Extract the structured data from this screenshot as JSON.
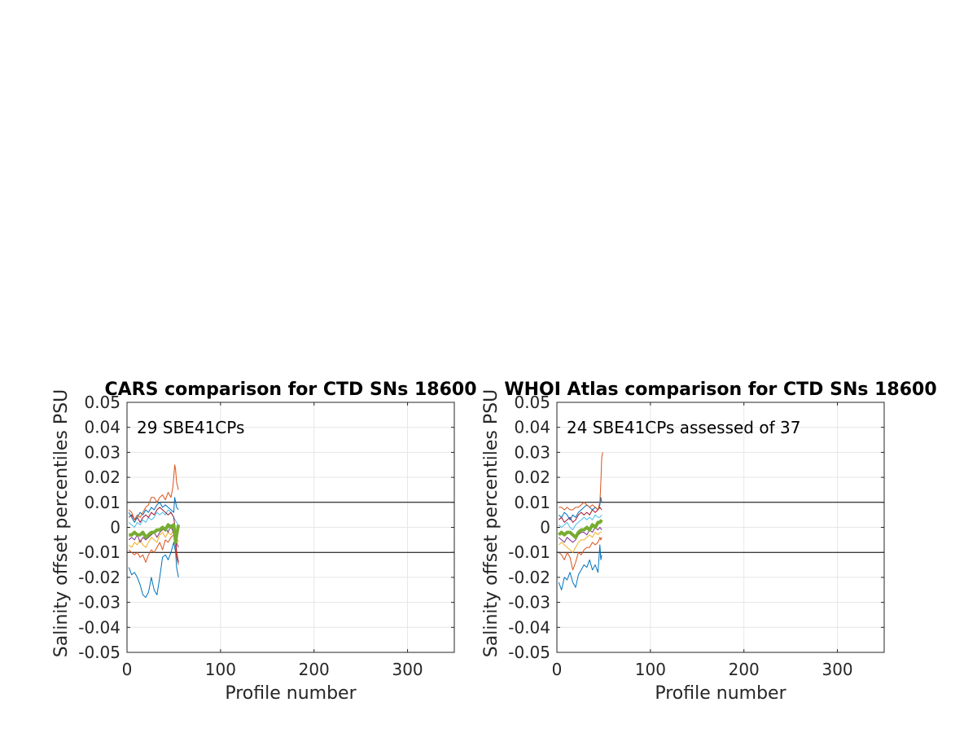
{
  "colors": {
    "axis": "#262626",
    "grid": "#e6e6e6",
    "refline": "#000000",
    "median": "#77ac30",
    "series_palette": [
      "#0072bd",
      "#d95319",
      "#edb120",
      "#7e2f8e",
      "#4dbeee",
      "#a2142f"
    ]
  },
  "chart_data": [
    {
      "type": "line",
      "title": "CARS comparison for CTD SNs 18600",
      "annotation": "29 SBE41CPs",
      "xlabel": "Profile number",
      "ylabel": "Salinity offset percentiles PSU",
      "xlim": [
        0,
        350
      ],
      "ylim": [
        -0.05,
        0.05
      ],
      "xticks": [
        0,
        100,
        200,
        300
      ],
      "xtick_labels": [
        "0",
        "100",
        "200",
        "300"
      ],
      "yticks": [
        -0.05,
        -0.04,
        -0.03,
        -0.02,
        -0.01,
        0,
        0.01,
        0.02,
        0.03,
        0.04,
        0.05
      ],
      "ytick_labels": [
        "-0.05",
        "-0.04",
        "-0.03",
        "-0.02",
        "-0.01",
        "0",
        "0.01",
        "0.02",
        "0.03",
        "0.04",
        "0.05"
      ],
      "grid": true,
      "reference_lines": [
        0.01,
        -0.01
      ],
      "series": [
        {
          "color": "#0072bd",
          "width": 1,
          "x": [
            2,
            5,
            8,
            11,
            14,
            17,
            20,
            23,
            26,
            29,
            32,
            35,
            38,
            41,
            44,
            47,
            50,
            52,
            53,
            55
          ],
          "y": [
            -0.016,
            -0.019,
            -0.018,
            -0.02,
            -0.023,
            -0.027,
            -0.028,
            -0.026,
            -0.02,
            -0.025,
            -0.027,
            -0.02,
            -0.012,
            -0.011,
            -0.013,
            -0.01,
            -0.006,
            -0.01,
            -0.016,
            -0.02
          ]
        },
        {
          "color": "#d95319",
          "width": 1,
          "x": [
            2,
            5,
            8,
            11,
            14,
            17,
            20,
            23,
            26,
            29,
            32,
            35,
            38,
            41,
            44,
            47,
            50,
            51,
            52,
            53,
            55
          ],
          "y": [
            -0.009,
            -0.01,
            -0.011,
            -0.01,
            -0.012,
            -0.011,
            -0.014,
            -0.011,
            -0.009,
            -0.01,
            -0.008,
            -0.006,
            -0.009,
            -0.005,
            -0.006,
            -0.004,
            -0.003,
            -0.005,
            -0.008,
            -0.012,
            -0.015
          ]
        },
        {
          "color": "#edb120",
          "width": 1,
          "x": [
            2,
            5,
            8,
            11,
            14,
            17,
            20,
            23,
            26,
            29,
            32,
            35,
            38,
            41,
            44,
            47,
            50,
            53,
            55
          ],
          "y": [
            -0.007,
            -0.008,
            -0.006,
            -0.007,
            -0.005,
            -0.007,
            -0.008,
            -0.006,
            -0.004,
            -0.005,
            -0.006,
            -0.003,
            -0.002,
            -0.004,
            -0.002,
            -0.003,
            -0.001,
            -0.004,
            -0.006
          ]
        },
        {
          "color": "#7e2f8e",
          "width": 1,
          "x": [
            2,
            5,
            8,
            11,
            14,
            17,
            20,
            23,
            26,
            29,
            32,
            35,
            38,
            41,
            44,
            47,
            50,
            53,
            55
          ],
          "y": [
            -0.005,
            -0.004,
            -0.005,
            -0.003,
            -0.006,
            -0.004,
            -0.005,
            -0.004,
            -0.003,
            -0.002,
            -0.004,
            -0.002,
            -0.001,
            0.0,
            -0.002,
            0.001,
            -0.003,
            -0.006,
            -0.008
          ]
        },
        {
          "color": "#4dbeee",
          "width": 1,
          "x": [
            2,
            5,
            8,
            11,
            14,
            17,
            20,
            23,
            26,
            29,
            32,
            35,
            38,
            41,
            44,
            47,
            50,
            53,
            55
          ],
          "y": [
            0.002,
            0.001,
            0.0,
            0.002,
            0.001,
            0.003,
            0.002,
            0.004,
            0.003,
            0.004,
            0.006,
            0.005,
            0.006,
            0.005,
            0.007,
            0.006,
            0.004,
            0.002,
            0.001
          ]
        },
        {
          "color": "#a2142f",
          "width": 1,
          "x": [
            2,
            5,
            8,
            11,
            14,
            17,
            20,
            23,
            26,
            29,
            32,
            35,
            38,
            41,
            44,
            47,
            50,
            52,
            53,
            55
          ],
          "y": [
            0.004,
            0.005,
            0.003,
            0.004,
            0.002,
            0.004,
            0.005,
            0.004,
            0.006,
            0.005,
            0.007,
            0.008,
            0.007,
            0.006,
            0.005,
            0.006,
            0.004,
            -0.002,
            -0.01,
            -0.014
          ]
        },
        {
          "color": "#0072bd",
          "width": 1,
          "x": [
            2,
            5,
            8,
            11,
            14,
            17,
            20,
            23,
            26,
            29,
            32,
            35,
            38,
            41,
            44,
            47,
            50,
            51,
            53,
            55
          ],
          "y": [
            0.006,
            0.004,
            0.002,
            0.004,
            0.006,
            0.005,
            0.007,
            0.006,
            0.008,
            0.007,
            0.009,
            0.01,
            0.008,
            0.009,
            0.008,
            0.007,
            0.006,
            0.012,
            0.008,
            0.007
          ]
        },
        {
          "color": "#d95319",
          "width": 1,
          "x": [
            2,
            5,
            8,
            11,
            14,
            17,
            20,
            23,
            26,
            29,
            32,
            35,
            38,
            41,
            44,
            47,
            49,
            50,
            51,
            52,
            53,
            55
          ],
          "y": [
            0.007,
            0.006,
            0.003,
            0.005,
            0.004,
            0.006,
            0.008,
            0.009,
            0.012,
            0.012,
            0.01,
            0.012,
            0.013,
            0.011,
            0.014,
            0.012,
            0.016,
            0.02,
            0.025,
            0.023,
            0.018,
            0.015
          ]
        },
        {
          "color": "#77ac30",
          "width": 4,
          "x": [
            2,
            5,
            8,
            11,
            14,
            17,
            20,
            23,
            26,
            29,
            32,
            35,
            38,
            41,
            44,
            47,
            50,
            52,
            53,
            55
          ],
          "y": [
            -0.003,
            -0.003,
            -0.002,
            -0.003,
            -0.003,
            -0.002,
            -0.004,
            -0.003,
            -0.002,
            -0.002,
            -0.001,
            -0.001,
            0.0,
            -0.001,
            0.001,
            0.0,
            0.001,
            -0.006,
            -0.003,
            0.001
          ]
        }
      ]
    },
    {
      "type": "line",
      "title": "WHOI Atlas comparison for CTD SNs 18600",
      "annotation": "24 SBE41CPs assessed of 37",
      "xlabel": "Profile number",
      "ylabel": "Salinity offset percentiles PSU",
      "xlim": [
        0,
        350
      ],
      "ylim": [
        -0.05,
        0.05
      ],
      "xticks": [
        0,
        100,
        200,
        300
      ],
      "xtick_labels": [
        "0",
        "100",
        "200",
        "300"
      ],
      "yticks": [
        -0.05,
        -0.04,
        -0.03,
        -0.02,
        -0.01,
        0,
        0.01,
        0.02,
        0.03,
        0.04,
        0.05
      ],
      "ytick_labels": [
        "-0.05",
        "-0.04",
        "-0.03",
        "-0.02",
        "-0.01",
        "0",
        "0.01",
        "0.02",
        "0.03",
        "0.04",
        "0.05"
      ],
      "grid": true,
      "reference_lines": [
        0.01,
        -0.01
      ],
      "series": [
        {
          "color": "#0072bd",
          "width": 1,
          "x": [
            2,
            5,
            8,
            11,
            14,
            17,
            20,
            23,
            26,
            29,
            32,
            35,
            38,
            41,
            44,
            46,
            47,
            48
          ],
          "y": [
            -0.022,
            -0.025,
            -0.02,
            -0.021,
            -0.018,
            -0.022,
            -0.024,
            -0.019,
            -0.017,
            -0.015,
            -0.016,
            -0.013,
            -0.017,
            -0.015,
            -0.018,
            -0.007,
            -0.013,
            -0.011
          ]
        },
        {
          "color": "#d95319",
          "width": 1,
          "x": [
            2,
            5,
            8,
            11,
            14,
            17,
            20,
            23,
            26,
            29,
            32,
            35,
            38,
            41,
            44,
            46,
            47,
            48
          ],
          "y": [
            -0.01,
            -0.011,
            -0.013,
            -0.01,
            -0.012,
            -0.017,
            -0.014,
            -0.01,
            -0.011,
            -0.009,
            -0.008,
            -0.008,
            -0.006,
            -0.007,
            -0.006,
            -0.004,
            -0.005,
            -0.004
          ]
        },
        {
          "color": "#edb120",
          "width": 1,
          "x": [
            2,
            5,
            8,
            11,
            14,
            17,
            20,
            23,
            26,
            29,
            32,
            35,
            38,
            41,
            44,
            46,
            48
          ],
          "y": [
            -0.007,
            -0.006,
            -0.007,
            -0.008,
            -0.009,
            -0.01,
            -0.008,
            -0.006,
            -0.005,
            -0.005,
            -0.004,
            -0.003,
            -0.004,
            -0.002,
            -0.003,
            -0.002,
            -0.002
          ]
        },
        {
          "color": "#7e2f8e",
          "width": 1,
          "x": [
            2,
            5,
            8,
            11,
            14,
            17,
            20,
            23,
            26,
            29,
            32,
            35,
            38,
            41,
            44,
            46,
            48
          ],
          "y": [
            -0.004,
            -0.005,
            -0.006,
            -0.004,
            -0.005,
            -0.006,
            -0.005,
            -0.003,
            -0.002,
            -0.002,
            -0.003,
            -0.001,
            -0.002,
            0.0,
            -0.001,
            0.0,
            -0.001
          ]
        },
        {
          "color": "#4dbeee",
          "width": 1,
          "x": [
            2,
            5,
            8,
            11,
            14,
            17,
            20,
            23,
            26,
            29,
            32,
            35,
            38,
            41,
            44,
            46,
            48
          ],
          "y": [
            0.001,
            0.0,
            0.001,
            0.002,
            0.0,
            -0.001,
            0.001,
            0.002,
            0.003,
            0.004,
            0.003,
            0.004,
            0.003,
            0.005,
            0.004,
            0.004,
            0.005
          ]
        },
        {
          "color": "#a2142f",
          "width": 1,
          "x": [
            2,
            5,
            8,
            11,
            14,
            17,
            20,
            23,
            26,
            29,
            32,
            35,
            38,
            41,
            44,
            46,
            48
          ],
          "y": [
            0.003,
            0.004,
            0.002,
            0.003,
            0.004,
            0.002,
            0.003,
            0.005,
            0.006,
            0.005,
            0.006,
            0.005,
            0.007,
            0.006,
            0.007,
            0.008,
            0.007
          ]
        },
        {
          "color": "#0072bd",
          "width": 1,
          "x": [
            2,
            5,
            8,
            11,
            14,
            17,
            20,
            23,
            26,
            29,
            32,
            35,
            38,
            41,
            44,
            46,
            47,
            48
          ],
          "y": [
            0.005,
            0.004,
            0.006,
            0.005,
            0.003,
            0.005,
            0.004,
            0.006,
            0.007,
            0.008,
            0.009,
            0.008,
            0.007,
            0.008,
            0.007,
            0.009,
            0.012,
            0.01
          ]
        },
        {
          "color": "#d95319",
          "width": 1,
          "x": [
            2,
            5,
            8,
            11,
            14,
            17,
            20,
            23,
            26,
            29,
            32,
            35,
            38,
            41,
            44,
            46,
            47,
            48,
            49
          ],
          "y": [
            0.008,
            0.008,
            0.007,
            0.008,
            0.007,
            0.007,
            0.008,
            0.008,
            0.009,
            0.01,
            0.009,
            0.008,
            0.009,
            0.008,
            0.007,
            0.01,
            0.018,
            0.028,
            0.03
          ]
        },
        {
          "color": "#77ac30",
          "width": 4,
          "x": [
            2,
            5,
            8,
            11,
            14,
            17,
            20,
            23,
            26,
            29,
            32,
            35,
            38,
            41,
            44,
            46,
            48
          ],
          "y": [
            -0.003,
            -0.002,
            -0.003,
            -0.002,
            -0.002,
            -0.003,
            -0.004,
            -0.002,
            -0.001,
            -0.001,
            0.0,
            -0.001,
            0.001,
            0.0,
            0.002,
            0.002,
            0.003
          ]
        }
      ]
    }
  ]
}
